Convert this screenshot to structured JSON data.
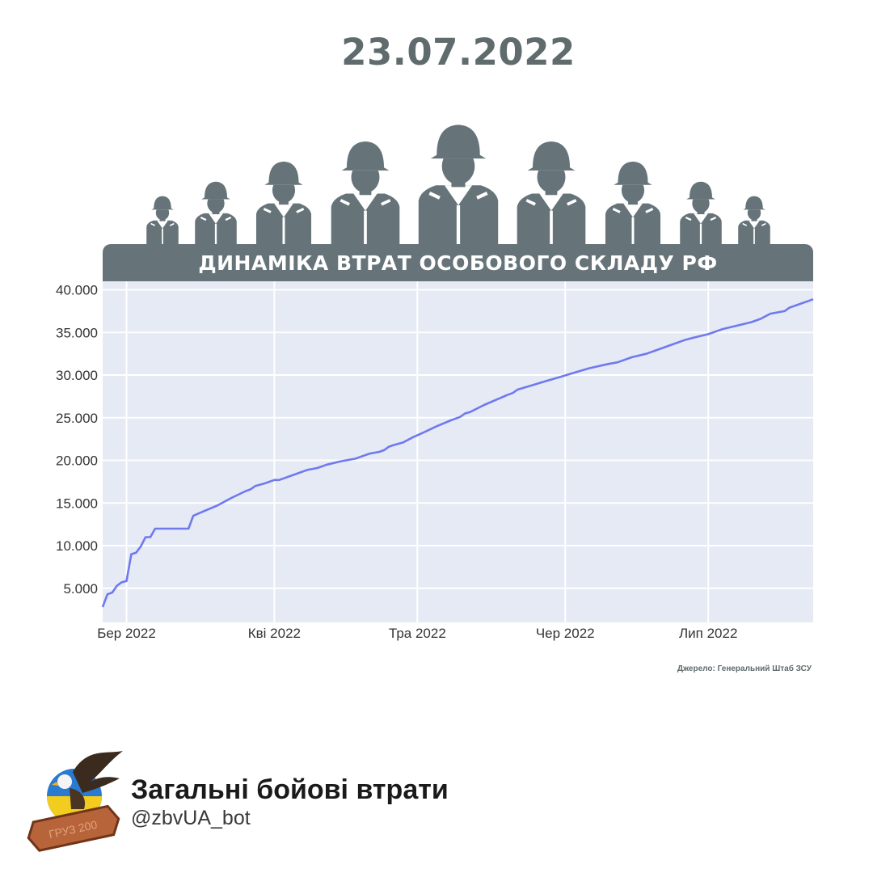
{
  "header": {
    "date": "23.07.2022",
    "banner_title": "ДИНАМІКА ВТРАТ ОСОБОВОГО СКЛАДУ РФ"
  },
  "colors": {
    "slate": "#66747a",
    "plot_bg": "#e5eaf5",
    "line": "#7079ee"
  },
  "icons": [
    "soldier-icon",
    "eagle-logo-icon"
  ],
  "chart_data": {
    "type": "line",
    "title": "ДИНАМІКА ВТРАТ ОСОБОВОГО СКЛАДУ РФ",
    "x_axis": {
      "type": "date",
      "range": [
        "2022-02-24",
        "2022-07-23"
      ],
      "ticks": [
        {
          "date": "2022-03-01",
          "label": "Бер 2022"
        },
        {
          "date": "2022-04-01",
          "label": "Кві 2022"
        },
        {
          "date": "2022-05-01",
          "label": "Тра 2022"
        },
        {
          "date": "2022-06-01",
          "label": "Чер 2022"
        },
        {
          "date": "2022-07-01",
          "label": "Лип 2022"
        }
      ]
    },
    "y_axis": {
      "range": [
        1000,
        41000
      ],
      "ticks": [
        {
          "value": 5000,
          "label": "5.000"
        },
        {
          "value": 10000,
          "label": "10.000"
        },
        {
          "value": 15000,
          "label": "15.000"
        },
        {
          "value": 20000,
          "label": "20.000"
        },
        {
          "value": 25000,
          "label": "25.000"
        },
        {
          "value": 30000,
          "label": "30.000"
        },
        {
          "value": 35000,
          "label": "35.000"
        },
        {
          "value": 40000,
          "label": "40.000"
        }
      ]
    },
    "grid": true,
    "series": [
      {
        "points": [
          [
            "2022-02-24",
            2800
          ],
          [
            "2022-02-25",
            4300
          ],
          [
            "2022-02-26",
            4500
          ],
          [
            "2022-02-27",
            5300
          ],
          [
            "2022-02-28",
            5710
          ],
          [
            "2022-03-01",
            5840
          ],
          [
            "2022-03-02",
            9000
          ],
          [
            "2022-03-03",
            9166
          ],
          [
            "2022-03-04",
            9920
          ],
          [
            "2022-03-05",
            11000
          ],
          [
            "2022-03-06",
            11000
          ],
          [
            "2022-03-07",
            12000
          ],
          [
            "2022-03-08",
            12000
          ],
          [
            "2022-03-09",
            12000
          ],
          [
            "2022-03-10",
            12000
          ],
          [
            "2022-03-11",
            12000
          ],
          [
            "2022-03-12",
            12000
          ],
          [
            "2022-03-13",
            12000
          ],
          [
            "2022-03-14",
            12000
          ],
          [
            "2022-03-15",
            13500
          ],
          [
            "2022-03-17",
            14000
          ],
          [
            "2022-03-20",
            14700
          ],
          [
            "2022-03-23",
            15600
          ],
          [
            "2022-03-26",
            16400
          ],
          [
            "2022-03-27",
            16600
          ],
          [
            "2022-03-28",
            17000
          ],
          [
            "2022-03-30",
            17300
          ],
          [
            "2022-03-31",
            17500
          ],
          [
            "2022-04-01",
            17700
          ],
          [
            "2022-04-02",
            17700
          ],
          [
            "2022-04-05",
            18300
          ],
          [
            "2022-04-06",
            18500
          ],
          [
            "2022-04-08",
            18900
          ],
          [
            "2022-04-10",
            19100
          ],
          [
            "2022-04-12",
            19500
          ],
          [
            "2022-04-15",
            19900
          ],
          [
            "2022-04-18",
            20200
          ],
          [
            "2022-04-20",
            20600
          ],
          [
            "2022-04-21",
            20800
          ],
          [
            "2022-04-23",
            21000
          ],
          [
            "2022-04-24",
            21200
          ],
          [
            "2022-04-25",
            21600
          ],
          [
            "2022-04-26",
            21800
          ],
          [
            "2022-04-28",
            22100
          ],
          [
            "2022-04-30",
            22700
          ],
          [
            "2022-05-02",
            23200
          ],
          [
            "2022-05-05",
            24000
          ],
          [
            "2022-05-08",
            24700
          ],
          [
            "2022-05-10",
            25100
          ],
          [
            "2022-05-11",
            25500
          ],
          [
            "2022-05-12",
            25650
          ],
          [
            "2022-05-15",
            26500
          ],
          [
            "2022-05-20",
            27700
          ],
          [
            "2022-05-21",
            27900
          ],
          [
            "2022-05-22",
            28300
          ],
          [
            "2022-05-25",
            28800
          ],
          [
            "2022-05-28",
            29300
          ],
          [
            "2022-05-31",
            29800
          ],
          [
            "2022-06-03",
            30300
          ],
          [
            "2022-06-06",
            30800
          ],
          [
            "2022-06-10",
            31300
          ],
          [
            "2022-06-12",
            31500
          ],
          [
            "2022-06-15",
            32100
          ],
          [
            "2022-06-18",
            32500
          ],
          [
            "2022-06-20",
            32900
          ],
          [
            "2022-06-23",
            33500
          ],
          [
            "2022-06-26",
            34100
          ],
          [
            "2022-06-28",
            34400
          ],
          [
            "2022-07-01",
            34800
          ],
          [
            "2022-07-04",
            35400
          ],
          [
            "2022-07-07",
            35800
          ],
          [
            "2022-07-10",
            36200
          ],
          [
            "2022-07-12",
            36600
          ],
          [
            "2022-07-14",
            37200
          ],
          [
            "2022-07-17",
            37500
          ],
          [
            "2022-07-18",
            37900
          ],
          [
            "2022-07-20",
            38300
          ],
          [
            "2022-07-22",
            38700
          ],
          [
            "2022-07-23",
            38900
          ]
        ]
      }
    ]
  },
  "footer": {
    "source": "Джерело: Генеральний Штаб ЗСУ",
    "brand_name": "Загальні бойові втрати",
    "brand_handle": "@zbvUA_bot",
    "logo_text": "ГРУЗ 200"
  }
}
